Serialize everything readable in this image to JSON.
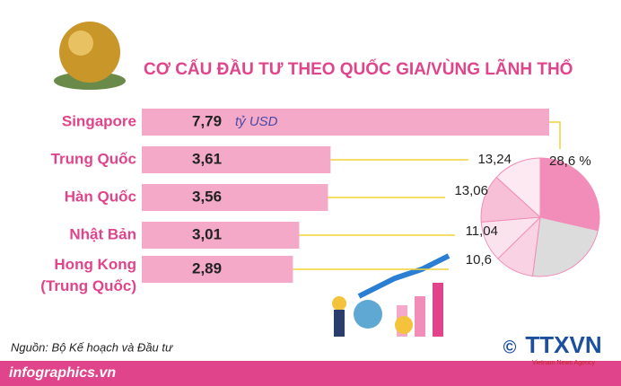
{
  "chart_data": {
    "type": "bar",
    "title": "CƠ CẤU ĐẦU TƯ THEO QUỐC GIA/VÙNG LÃNH THỔ",
    "unit": "tỷ USD",
    "categories": [
      "Singapore",
      "Trung Quốc",
      "Hàn Quốc",
      "Nhật Bản",
      "Hong Kong (Trung Quốc)"
    ],
    "values": [
      7.79,
      3.61,
      3.56,
      3.01,
      2.89
    ],
    "value_labels": [
      "7,79",
      "3,61",
      "3,56",
      "3,01",
      "2,89"
    ],
    "color": "#f4a9c8",
    "pie": {
      "type": "pie",
      "values": [
        28.6,
        23.46,
        10.6,
        11.04,
        13.06,
        13.24
      ],
      "value_labels": [
        "28,6 %",
        null,
        "10,6",
        "11,04",
        "13,06",
        "13,24"
      ],
      "colors": [
        "#f28cb8",
        "#dcdcdc",
        "#f9d3e3",
        "#fbe3ed",
        "#f7c0d7",
        "#fde9f1"
      ]
    },
    "source": "Nguồn: Bộ Kế hoạch và Đầu tư",
    "site": "infographics.vn",
    "logo": "TTXVN",
    "logo_sub": "Vietnam News Agency",
    "copyright": "©"
  }
}
